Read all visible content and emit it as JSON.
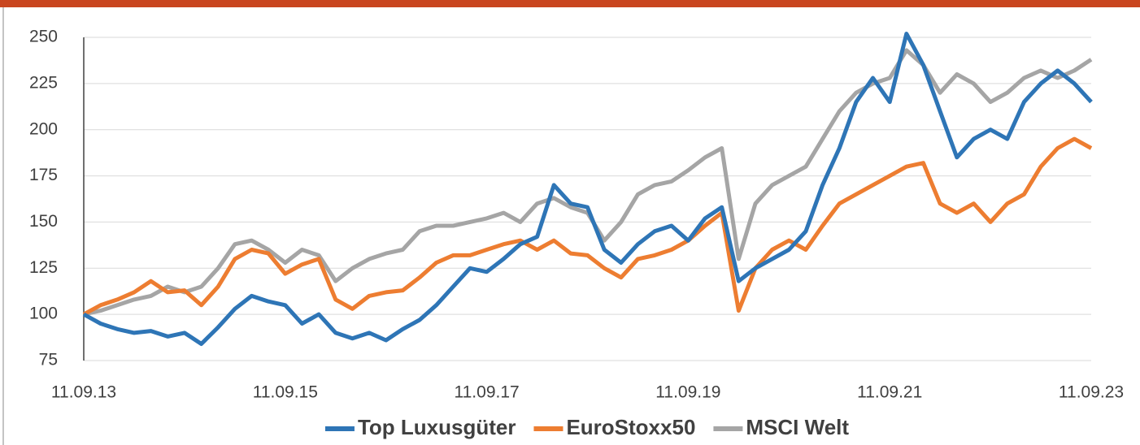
{
  "chart_data": {
    "type": "line",
    "categories": [
      "11.09.13",
      null,
      null,
      null,
      null,
      null,
      null,
      null,
      null,
      null,
      null,
      null,
      "11.09.15",
      null,
      null,
      null,
      null,
      null,
      null,
      null,
      null,
      null,
      null,
      null,
      "11.09.17",
      null,
      null,
      null,
      null,
      null,
      null,
      null,
      null,
      null,
      null,
      null,
      "11.09.19",
      null,
      null,
      null,
      null,
      null,
      null,
      null,
      null,
      null,
      null,
      null,
      "11.09.21",
      null,
      null,
      null,
      null,
      null,
      null,
      null,
      null,
      null,
      null,
      null,
      "11.09.23"
    ],
    "series": [
      {
        "name": "Top Luxusgüter",
        "color": "#2e75b6",
        "values": [
          100,
          95,
          92,
          90,
          91,
          88,
          90,
          84,
          93,
          103,
          110,
          107,
          105,
          95,
          100,
          90,
          87,
          90,
          86,
          92,
          97,
          105,
          115,
          125,
          123,
          130,
          138,
          142,
          170,
          160,
          158,
          135,
          128,
          138,
          145,
          148,
          140,
          152,
          158,
          118,
          125,
          130,
          135,
          145,
          170,
          190,
          215,
          228,
          215,
          252,
          235,
          210,
          185,
          195,
          200,
          195,
          215,
          225,
          232,
          225,
          215
        ]
      },
      {
        "name": "EuroStoxx50",
        "color": "#ed7d31",
        "values": [
          100,
          105,
          108,
          112,
          118,
          112,
          113,
          105,
          115,
          130,
          135,
          133,
          122,
          127,
          130,
          108,
          103,
          110,
          112,
          113,
          120,
          128,
          132,
          132,
          135,
          138,
          140,
          135,
          140,
          133,
          132,
          125,
          120,
          130,
          132,
          135,
          140,
          148,
          155,
          102,
          125,
          135,
          140,
          135,
          148,
          160,
          165,
          170,
          175,
          180,
          182,
          160,
          155,
          160,
          150,
          160,
          165,
          180,
          190,
          195,
          190
        ]
      },
      {
        "name": "MSCI Welt",
        "color": "#a5a5a5",
        "values": [
          100,
          102,
          105,
          108,
          110,
          115,
          112,
          115,
          125,
          138,
          140,
          135,
          128,
          135,
          132,
          118,
          125,
          130,
          133,
          135,
          145,
          148,
          148,
          150,
          152,
          155,
          150,
          160,
          163,
          158,
          155,
          140,
          150,
          165,
          170,
          172,
          178,
          185,
          190,
          130,
          160,
          170,
          175,
          180,
          195,
          210,
          220,
          225,
          228,
          243,
          235,
          220,
          230,
          225,
          215,
          220,
          228,
          232,
          228,
          232,
          238
        ]
      }
    ],
    "ylim": [
      75,
      250
    ],
    "yticks": [
      75,
      100,
      125,
      150,
      175,
      200,
      225,
      250
    ],
    "grid": true
  }
}
